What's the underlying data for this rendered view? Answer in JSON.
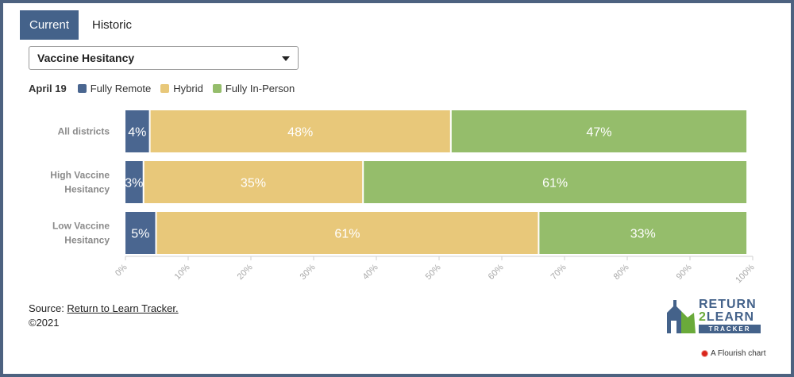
{
  "tabs": [
    {
      "label": "Current",
      "active": true
    },
    {
      "label": "Historic",
      "active": false
    }
  ],
  "dropdown": {
    "selected": "Vaccine Hesitancy"
  },
  "legend": {
    "period": "April 19",
    "entries": [
      "Fully Remote",
      "Hybrid",
      "Fully In-Person"
    ]
  },
  "colors": {
    "Fully Remote": "#4a6690",
    "Hybrid": "#e8c87a",
    "Fully In-Person": "#95bd6b"
  },
  "chart_data": {
    "type": "bar",
    "orientation": "horizontal",
    "stacked": true,
    "categories": [
      "All districts",
      "High Vaccine\nHesitancy",
      "Low Vaccine\nHesitancy"
    ],
    "series": [
      {
        "name": "Fully Remote",
        "values": [
          4,
          3,
          5
        ],
        "labels": [
          "4%",
          "3%",
          "5%"
        ]
      },
      {
        "name": "Hybrid",
        "values": [
          48,
          35,
          61
        ],
        "labels": [
          "48%",
          "35%",
          "61%"
        ]
      },
      {
        "name": "Fully In-Person",
        "values": [
          47,
          61,
          33
        ],
        "labels": [
          "47%",
          "61%",
          "33%"
        ]
      }
    ],
    "xlim": [
      0,
      100
    ],
    "xticks": [
      0,
      10,
      20,
      30,
      40,
      50,
      60,
      70,
      80,
      90,
      100
    ],
    "xtick_labels": [
      "0%",
      "10%",
      "20%",
      "30%",
      "40%",
      "50%",
      "60%",
      "70%",
      "80%",
      "90%",
      "100%"
    ],
    "legend_position": "top-left",
    "grid": false
  },
  "footer": {
    "source_prefix": "Source: ",
    "source_link": "Return to Learn Tracker.",
    "copyright": "©2021"
  },
  "logo": {
    "line1": "RETURN",
    "line2_num": "2",
    "line2_rest": "LEARN",
    "line3": "TRACKER"
  },
  "attribution": "A Flourish chart"
}
